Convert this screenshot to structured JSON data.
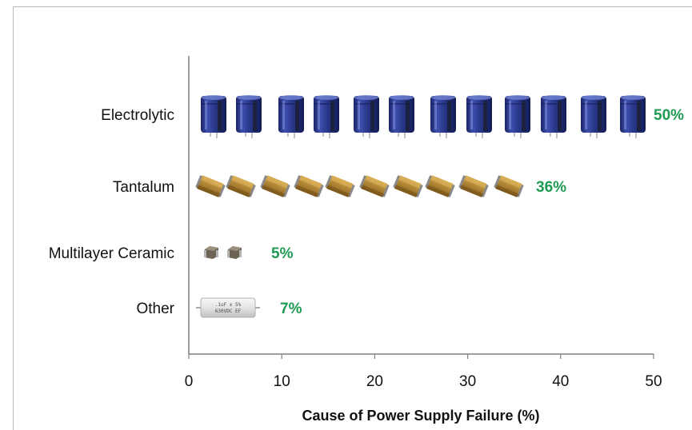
{
  "chart_data": {
    "type": "bar",
    "categories": [
      "Electrolytic",
      "Tantalum",
      "Multilayer Ceramic",
      "Other"
    ],
    "values": [
      50,
      36,
      5,
      7
    ],
    "value_labels": [
      "50%",
      "36%",
      "5%",
      "7%"
    ],
    "icon_counts": [
      12,
      10,
      2,
      1
    ],
    "icons": [
      "electrolytic-capacitor-icon",
      "tantalum-capacitor-icon",
      "ceramic-capacitor-icon",
      "film-capacitor-icon"
    ],
    "xlabel": "Cause of Power Supply Failure (%)",
    "ylabel": "",
    "xlim": [
      0,
      50
    ],
    "xticks": [
      0,
      10,
      20,
      30,
      40,
      50
    ],
    "grid": false,
    "colors": {
      "value_label": "#1f9a52",
      "electrolytic_body": "#2d3b86",
      "tantalum_body": "#a87e2c",
      "ceramic_body": "#6d6254",
      "axis": "#7f7f7f"
    },
    "film_capacitor_print": [
      ".1uF ± 5%",
      "630VDC EF"
    ]
  }
}
